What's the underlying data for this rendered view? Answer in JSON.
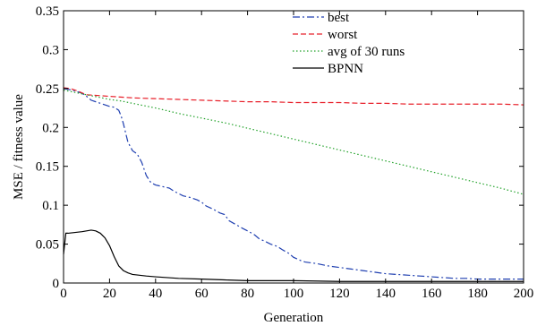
{
  "chart_data": {
    "type": "line",
    "title": "",
    "xlabel": "Generation",
    "ylabel": "MSE / fitness value",
    "xlim": [
      0,
      200
    ],
    "ylim": [
      0,
      0.35
    ],
    "xticks": [
      0,
      20,
      40,
      60,
      80,
      100,
      120,
      140,
      160,
      180,
      200
    ],
    "yticks": [
      0,
      0.05,
      0.1,
      0.15,
      0.2,
      0.25,
      0.3,
      0.35
    ],
    "ytick_labels": [
      "0",
      "0.05",
      "0.1",
      "0.15",
      "0.2",
      "0.25",
      "0.3",
      "0.35"
    ],
    "grid": false,
    "legend_position": "top-right",
    "series": [
      {
        "name": "best",
        "color": "#1f3fb0",
        "dash": "8,3,2,3",
        "x": [
          0,
          2,
          5,
          8,
          10,
          12,
          15,
          18,
          20,
          22,
          24,
          25,
          26,
          27,
          28,
          30,
          32,
          34,
          36,
          38,
          40,
          43,
          46,
          48,
          50,
          52,
          55,
          58,
          60,
          62,
          65,
          68,
          70,
          72,
          75,
          78,
          80,
          83,
          85,
          88,
          90,
          93,
          95,
          98,
          100,
          103,
          105,
          110,
          115,
          120,
          125,
          130,
          135,
          140,
          145,
          150,
          155,
          160,
          165,
          170,
          175,
          180,
          185,
          190,
          195,
          200
        ],
        "y": [
          0.25,
          0.249,
          0.247,
          0.244,
          0.24,
          0.235,
          0.232,
          0.229,
          0.227,
          0.226,
          0.222,
          0.215,
          0.205,
          0.193,
          0.181,
          0.17,
          0.166,
          0.155,
          0.138,
          0.129,
          0.126,
          0.124,
          0.122,
          0.118,
          0.115,
          0.112,
          0.11,
          0.107,
          0.104,
          0.099,
          0.095,
          0.09,
          0.088,
          0.08,
          0.075,
          0.07,
          0.067,
          0.062,
          0.057,
          0.053,
          0.05,
          0.047,
          0.043,
          0.038,
          0.033,
          0.029,
          0.027,
          0.025,
          0.022,
          0.02,
          0.018,
          0.016,
          0.014,
          0.012,
          0.011,
          0.01,
          0.009,
          0.008,
          0.007,
          0.006,
          0.006,
          0.005,
          0.005,
          0.005,
          0.005,
          0.005
        ]
      },
      {
        "name": "worst",
        "color": "#e8202a",
        "dash": "6,3",
        "x": [
          0,
          3,
          6,
          10,
          20,
          30,
          40,
          50,
          60,
          70,
          80,
          90,
          100,
          110,
          120,
          130,
          140,
          150,
          160,
          170,
          180,
          190,
          200
        ],
        "y": [
          0.251,
          0.25,
          0.247,
          0.242,
          0.24,
          0.238,
          0.237,
          0.236,
          0.235,
          0.234,
          0.233,
          0.233,
          0.232,
          0.232,
          0.232,
          0.231,
          0.231,
          0.23,
          0.23,
          0.23,
          0.23,
          0.23,
          0.229
        ]
      },
      {
        "name": "avg of 30 runs",
        "color": "#22a22a",
        "dash": "1.5,2.5",
        "x": [
          0,
          5,
          10,
          15,
          20,
          25,
          30,
          40,
          50,
          60,
          70,
          80,
          90,
          100,
          110,
          120,
          130,
          140,
          150,
          160,
          170,
          180,
          190,
          200
        ],
        "y": [
          0.248,
          0.245,
          0.242,
          0.239,
          0.236,
          0.234,
          0.231,
          0.225,
          0.218,
          0.212,
          0.206,
          0.199,
          0.192,
          0.185,
          0.178,
          0.171,
          0.164,
          0.157,
          0.15,
          0.143,
          0.136,
          0.129,
          0.122,
          0.114
        ]
      },
      {
        "name": "BPNN",
        "color": "#000000",
        "dash": "",
        "x": [
          0,
          1,
          2,
          5,
          8,
          10,
          12,
          14,
          16,
          18,
          20,
          22,
          24,
          26,
          28,
          30,
          33,
          36,
          40,
          45,
          50,
          60,
          70,
          80,
          90,
          100,
          120,
          140,
          160,
          180,
          200
        ],
        "y": [
          0.037,
          0.064,
          0.064,
          0.065,
          0.066,
          0.067,
          0.068,
          0.067,
          0.064,
          0.058,
          0.048,
          0.034,
          0.022,
          0.016,
          0.013,
          0.011,
          0.01,
          0.009,
          0.008,
          0.007,
          0.006,
          0.005,
          0.004,
          0.003,
          0.003,
          0.003,
          0.002,
          0.002,
          0.002,
          0.002,
          0.002
        ]
      }
    ]
  }
}
